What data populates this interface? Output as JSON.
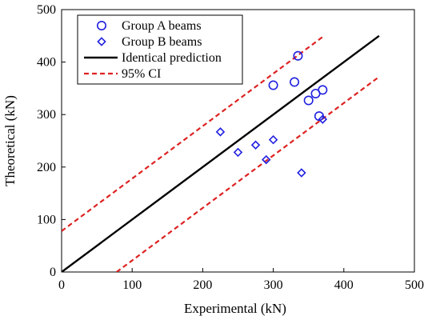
{
  "chart_data": {
    "type": "scatter",
    "title": "",
    "xlabel": "Experimental (kN)",
    "ylabel": "Theoretical (kN)",
    "xlim": [
      0,
      500
    ],
    "ylim": [
      0,
      500
    ],
    "xticks": [
      0,
      100,
      200,
      300,
      400,
      500
    ],
    "yticks": [
      0,
      100,
      200,
      300,
      400,
      500
    ],
    "grid": false,
    "legend_position": "top-left",
    "series": [
      {
        "name": "Group A beams",
        "kind": "scatter",
        "marker": "circle",
        "color": "#2020e0",
        "points": [
          [
            300,
            356
          ],
          [
            330,
            362
          ],
          [
            335,
            412
          ],
          [
            350,
            327
          ],
          [
            360,
            340
          ],
          [
            370,
            347
          ],
          [
            365,
            297
          ]
        ]
      },
      {
        "name": "Group B beams",
        "kind": "scatter",
        "marker": "diamond",
        "color": "#2020e0",
        "points": [
          [
            225,
            267
          ],
          [
            250,
            228
          ],
          [
            275,
            242
          ],
          [
            290,
            214
          ],
          [
            300,
            252
          ],
          [
            340,
            189
          ],
          [
            370,
            291
          ]
        ]
      },
      {
        "name": "Identical prediction",
        "kind": "line",
        "style": "solid",
        "color": "#000000",
        "points": [
          [
            0,
            0
          ],
          [
            450,
            450
          ]
        ]
      },
      {
        "name": "95% CI",
        "kind": "line",
        "style": "dashed",
        "color": "#dd2222",
        "points": [
          [
            0,
            78
          ],
          [
            370,
            448
          ]
        ]
      },
      {
        "name": "95% CI",
        "kind": "line",
        "style": "dashed",
        "color": "#dd2222",
        "show_in_legend": false,
        "points": [
          [
            78,
            0
          ],
          [
            450,
            372
          ]
        ]
      }
    ]
  }
}
